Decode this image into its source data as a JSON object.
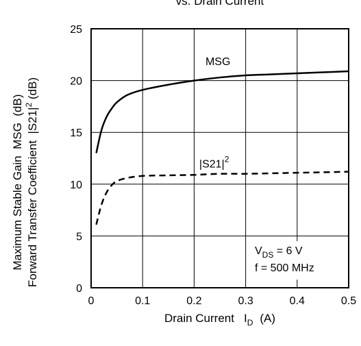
{
  "chart_data": {
    "type": "line",
    "title": "vs. Drain Current",
    "xlabel": "Drain Current",
    "xlabel_symbol": "I",
    "xlabel_sub": "D",
    "xlabel_unit": "(A)",
    "ylabel_line1": "Maximum Stable Gain  MSG  (dB)",
    "ylabel_line2_pre": "Forward Transfer Coefficient  |S21|",
    "ylabel_line2_sup": "2",
    "ylabel_line2_post": " (dB)",
    "xlim": [
      0,
      0.5
    ],
    "ylim": [
      0,
      25
    ],
    "xticks": [
      "0",
      "0.1",
      "0.2",
      "0.3",
      "0.4",
      "0.5"
    ],
    "xtick_values": [
      0,
      0.1,
      0.2,
      0.3,
      0.4,
      0.5
    ],
    "yticks": [
      "0",
      "5",
      "10",
      "15",
      "20",
      "25"
    ],
    "ytick_values": [
      0,
      5,
      10,
      15,
      20,
      25
    ],
    "grid": true,
    "series": [
      {
        "name": "MSG",
        "style": "solid",
        "x": [
          0.01,
          0.02,
          0.03,
          0.04,
          0.05,
          0.07,
          0.1,
          0.15,
          0.2,
          0.25,
          0.3,
          0.35,
          0.4,
          0.45,
          0.5
        ],
        "y": [
          13.0,
          15.2,
          16.5,
          17.3,
          17.9,
          18.6,
          19.1,
          19.6,
          20.0,
          20.3,
          20.5,
          20.6,
          20.7,
          20.8,
          20.9
        ]
      },
      {
        "name": "|S21|",
        "name_sup": "2",
        "style": "dashed",
        "x": [
          0.01,
          0.02,
          0.03,
          0.04,
          0.05,
          0.07,
          0.1,
          0.15,
          0.2,
          0.25,
          0.3,
          0.35,
          0.4,
          0.45,
          0.5
        ],
        "y": [
          6.1,
          8.0,
          9.2,
          9.9,
          10.3,
          10.6,
          10.8,
          10.85,
          10.9,
          11.0,
          11.0,
          11.05,
          11.1,
          11.15,
          11.2
        ]
      }
    ],
    "annotations": {
      "vds_symbol": "V",
      "vds_sub": "DS",
      "vds_value": " = 6 V",
      "freq": "f = 500 MHz"
    }
  }
}
